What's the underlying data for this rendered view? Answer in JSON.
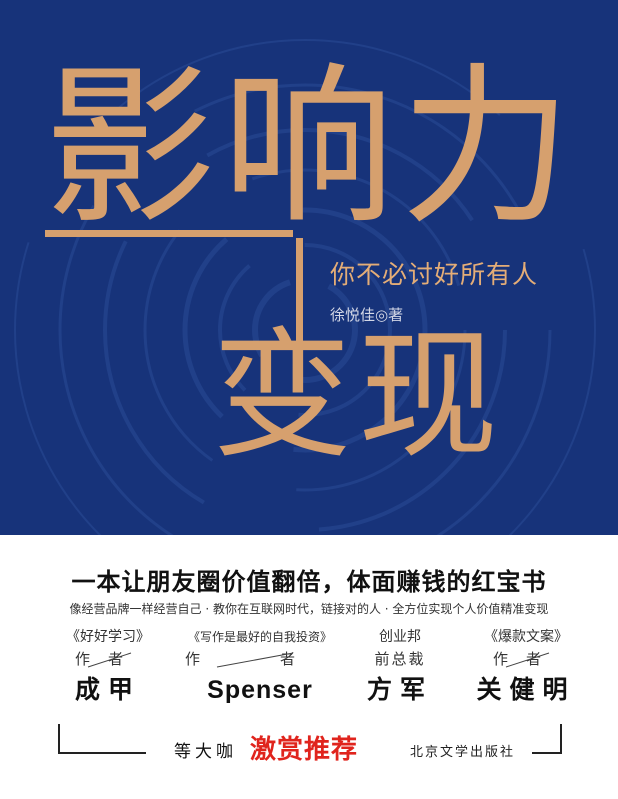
{
  "cover": {
    "title_line1": "影响力",
    "title_line2": "变现",
    "subtitle": "你不必讨好所有人",
    "author": "徐悦佳◎著",
    "colors": {
      "background_blue": "#17337a",
      "title_gold": "#d6a06e",
      "highlight_red": "#e0241d"
    }
  },
  "blurb": {
    "slogan": "一本让朋友圈价值翻倍，体面赚钱的红宝书",
    "description": "像经营品牌一样经营自己 · 教你在互联网时代，链接对的人 · 全方位实现个人价值精准变现"
  },
  "recommenders": [
    {
      "source": "《好好学习》",
      "role": "作者",
      "name": "成甲"
    },
    {
      "source": "《写作是最好的自我投资》",
      "role": "作者",
      "name": "Spenser"
    },
    {
      "source": "创业邦",
      "role": "前总裁",
      "name": "方军"
    },
    {
      "source": "《爆款文案》",
      "role": "作者",
      "name": "关健明"
    }
  ],
  "footer": {
    "label": "等大咖",
    "highlight": "激赏推荐",
    "publisher": "北京文学出版社"
  }
}
